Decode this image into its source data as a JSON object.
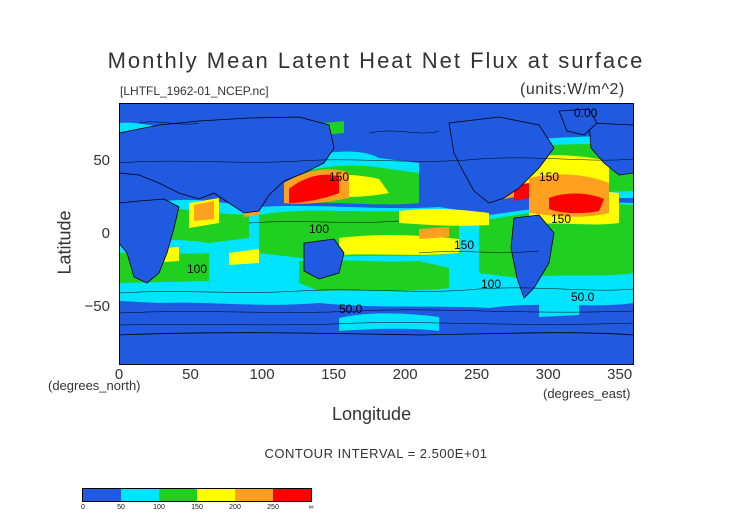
{
  "title": "Monthly Mean Latent Heat Net Flux at surface",
  "subtitle": "[LHTFL_1962-01_NCEP.nc]",
  "units": "(units:W/m^2)",
  "xlabel": "Longitude",
  "ylabel": "Latitude",
  "x_unit_label": "(degrees_east)",
  "y_unit_label": "(degrees_north)",
  "contour_interval": "CONTOUR INTERVAL = 2.500E+01",
  "x_ticks": [
    "0",
    "50",
    "100",
    "150",
    "200",
    "250",
    "300",
    "350"
  ],
  "y_ticks": [
    "50",
    "0",
    "−50"
  ],
  "contour_labels": [
    "0.00",
    "150",
    "150",
    "150",
    "100",
    "150",
    "100",
    "100",
    "50.0",
    "50.0"
  ],
  "colorbar": {
    "labels": [
      "0",
      "50",
      "100",
      "150",
      "200",
      "250",
      "∞"
    ],
    "colors": [
      "#1f5ae0",
      "#1f5ae0",
      "#00e4ff",
      "#00e4ff",
      "#20d020",
      "#20d020",
      "#ffff00",
      "#ffff00",
      "#ffa020",
      "#ffa020",
      "#ff0000",
      "#ff0000"
    ]
  },
  "colors": {
    "ocean_low": "#1f5ae0",
    "land": "#1f5ae0",
    "cyan": "#00e4ff",
    "green": "#20d020",
    "yellow": "#ffff00",
    "orange": "#ffa020",
    "red": "#ff0000"
  },
  "chart_data": {
    "type": "heatmap",
    "x_range": [
      0,
      360
    ],
    "y_range": [
      -90,
      90
    ],
    "levels": [
      0,
      25,
      50,
      75,
      100,
      125,
      150,
      175,
      200,
      225,
      250,
      275
    ],
    "interval": 25
  }
}
